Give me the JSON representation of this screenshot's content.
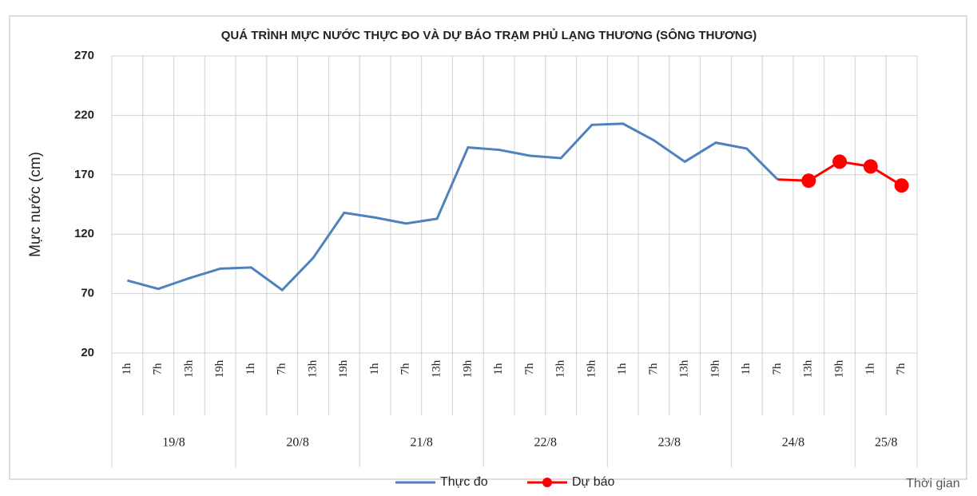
{
  "chart_data": {
    "type": "line",
    "title": "QUÁ TRÌNH MỰC NƯỚC THỰC ĐO VÀ DỰ BÁO TRẠM PHỦ LẠNG THƯƠNG (SÔNG THƯƠNG)",
    "y_label": "Mực nước (cm)",
    "x_label": "Thời gian",
    "categories": [
      "1h",
      "7h",
      "13h",
      "19h",
      "1h",
      "7h",
      "13h",
      "19h",
      "1h",
      "7h",
      "13h",
      "19h",
      "1h",
      "7h",
      "13h",
      "19h",
      "1h",
      "7h",
      "13h",
      "19h",
      "1h",
      "7h",
      "13h",
      "19h",
      "1h",
      "7h"
    ],
    "groups": [
      {
        "label": "19/8",
        "size": 4
      },
      {
        "label": "20/8",
        "size": 4
      },
      {
        "label": "21/8",
        "size": 4
      },
      {
        "label": "22/8",
        "size": 4
      },
      {
        "label": "23/8",
        "size": 4
      },
      {
        "label": "24/8",
        "size": 4
      },
      {
        "label": "25/8",
        "size": 2
      }
    ],
    "series": [
      {
        "name": "Thực đo",
        "color": "#4f81bd",
        "marker": false,
        "values": [
          81,
          74,
          83,
          91,
          92,
          73,
          100,
          138,
          134,
          129,
          133,
          193,
          191,
          186,
          184,
          212,
          213,
          199,
          181,
          197,
          192,
          166,
          null,
          null,
          null,
          null
        ]
      },
      {
        "name": "Dự báo",
        "color": "#ff0000",
        "marker": true,
        "values": [
          null,
          null,
          null,
          null,
          null,
          null,
          null,
          null,
          null,
          null,
          null,
          null,
          null,
          null,
          null,
          null,
          null,
          null,
          null,
          null,
          null,
          166,
          165,
          181,
          177,
          161
        ]
      }
    ],
    "ylim": [
      20,
      270
    ],
    "yticks": [
      20,
      70,
      120,
      170,
      220,
      270
    ],
    "grid": true,
    "legend": "bottom"
  }
}
